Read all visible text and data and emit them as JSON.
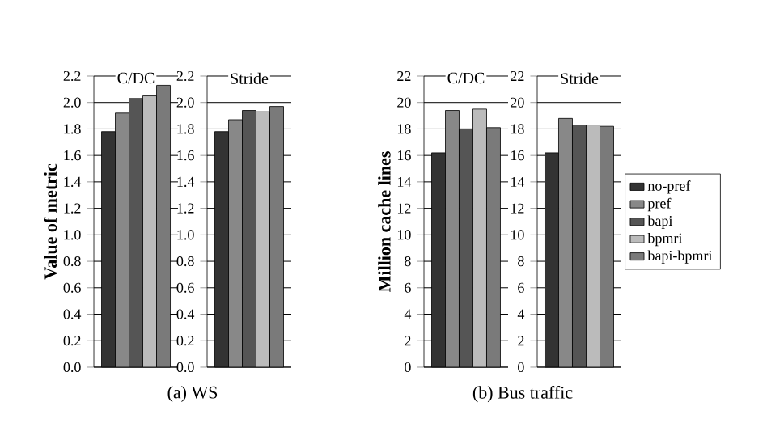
{
  "chart_data": [
    {
      "type": "bar",
      "title": "C/DC",
      "ylabel": "Value of metric",
      "categories": [
        null
      ],
      "ylim": [
        0,
        2.2
      ],
      "yticks": [
        {
          "value": 0,
          "label": "0.0"
        },
        0.2,
        0.4,
        0.6,
        0.8,
        {
          "value": 1,
          "label": "1.0"
        },
        1.2,
        1.4,
        1.6,
        1.8,
        {
          "value": 2,
          "label": "2.0"
        },
        2.2
      ],
      "grid": "y",
      "annotations": [
        "(a) WS"
      ],
      "series": [
        {
          "color": "#333333",
          "values": [
            1.78
          ]
        },
        {
          "color": "#888888",
          "values": [
            1.92
          ]
        },
        {
          "color": "#555555",
          "values": [
            2.03
          ]
        },
        {
          "color": "#bbbbbb",
          "values": [
            2.05
          ]
        },
        {
          "color": "#7a7a7a",
          "values": [
            2.13
          ]
        }
      ]
    },
    {
      "type": "bar",
      "title": "Stride",
      "categories": [
        null
      ],
      "ylim": [
        0,
        2.2
      ],
      "yticks": [
        {
          "value": 0,
          "label": "0.0"
        },
        0.2,
        0.4,
        0.6,
        0.8,
        {
          "value": 1,
          "label": "1.0"
        },
        1.2,
        1.4,
        1.6,
        1.8,
        {
          "value": 2,
          "label": "2.0"
        },
        2.2
      ],
      "grid": "y",
      "series": [
        {
          "color": "#333333",
          "values": [
            1.78
          ]
        },
        {
          "color": "#888888",
          "values": [
            1.87
          ]
        },
        {
          "color": "#555555",
          "values": [
            1.94
          ]
        },
        {
          "color": "#bbbbbb",
          "values": [
            1.93
          ]
        },
        {
          "color": "#7a7a7a",
          "values": [
            1.97
          ]
        }
      ]
    },
    {
      "type": "bar",
      "title": "C/DC",
      "ylabel": "Million cache lines",
      "categories": [
        null
      ],
      "ylim": [
        0,
        22
      ],
      "yticks": [
        0,
        2,
        4,
        6,
        8,
        10,
        12,
        14,
        16,
        18,
        20,
        22
      ],
      "grid": "y",
      "annotations": [
        "(b) Bus traffic"
      ],
      "series": [
        {
          "color": "#333333",
          "values": [
            16.2
          ]
        },
        {
          "color": "#888888",
          "values": [
            19.4
          ]
        },
        {
          "color": "#555555",
          "values": [
            18.0
          ]
        },
        {
          "color": "#bbbbbb",
          "values": [
            19.5
          ]
        },
        {
          "color": "#7a7a7a",
          "values": [
            18.1
          ]
        }
      ]
    },
    {
      "type": "bar",
      "title": "Stride",
      "categories": [
        null
      ],
      "ylim": [
        0,
        22
      ],
      "yticks": [
        0,
        2,
        4,
        6,
        8,
        10,
        12,
        14,
        16,
        18,
        20,
        22
      ],
      "grid": "y",
      "legend": "right",
      "series": [
        {
          "name": "no-pref",
          "color": "#333333",
          "values": [
            16.2
          ]
        },
        {
          "name": "pref",
          "color": "#888888",
          "values": [
            18.8
          ]
        },
        {
          "name": "bapi",
          "color": "#555555",
          "values": [
            18.3
          ]
        },
        {
          "name": "bpmri",
          "color": "#bbbbbb",
          "values": [
            18.3
          ]
        },
        {
          "name": "bapi-bpmri",
          "color": "#7a7a7a",
          "values": [
            18.2
          ]
        }
      ]
    }
  ]
}
